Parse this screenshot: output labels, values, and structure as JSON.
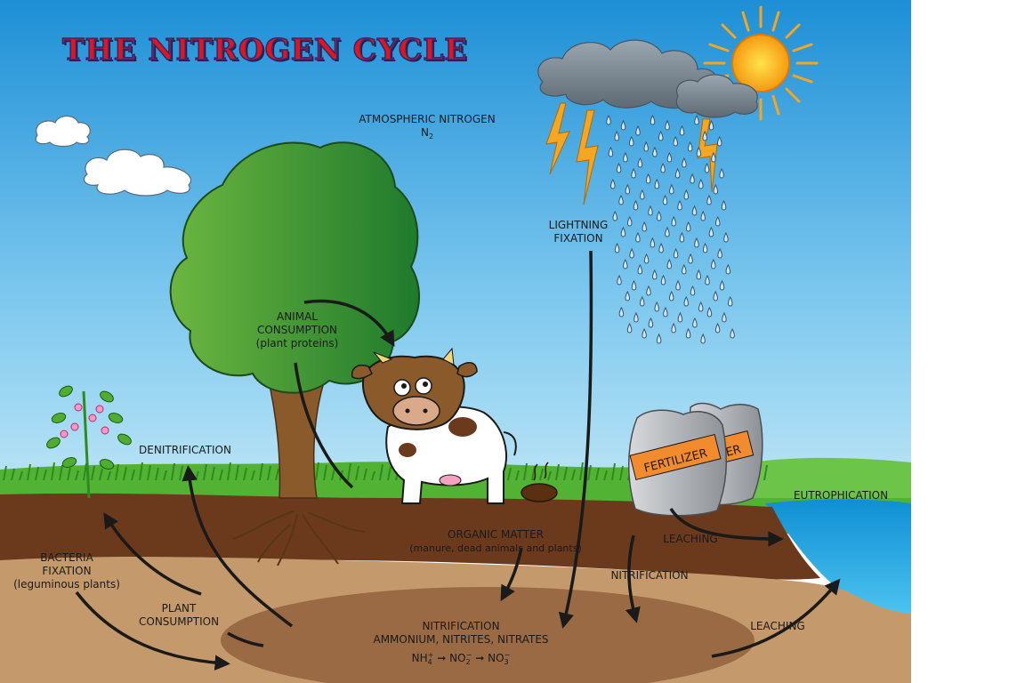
{
  "title": "THE NITROGEN CYCLE",
  "labels": {
    "atmospheric": "ATMOSPHERIC NITROGEN",
    "n2": "N",
    "n2_sub": "2",
    "lightning": "LIGHTNING",
    "lightning2": "FIXATION",
    "animal1": "ANIMAL",
    "animal2": "CONSUMPTION",
    "animal3": "(plant proteins)",
    "denitrification": "DENITRIFICATION",
    "bacteria1": "BACTERIA",
    "bacteria2": "FIXATION",
    "bacteria3": "(leguminous plants)",
    "plant1": "PLANT",
    "plant2": "CONSUMPTION",
    "organic1": "ORGANIC MATTER",
    "organic2": "(manure, dead animals and plants)",
    "leaching_top": "LEACHING",
    "nitrification_right": "NITRIFICATION",
    "eutrophication": "EUTROPHICATION",
    "leaching_bottom": "LEACHING",
    "nitrification_center": "NITRIFICATION",
    "ammonium": "AMMONIUM, NITRITES, NITRATES",
    "formula": {
      "nh": "NH",
      "nh_sub": "4",
      "nh_sup": "+",
      "no2": "NO",
      "no2_sub": "2",
      "no2_sup": "−",
      "no3": "NO",
      "no3_sub": "3",
      "no3_sup": "−"
    },
    "fertilizer": "FERTILIZER",
    "fertilizer_back": "IZER"
  },
  "colors": {
    "sky_top": "#1d8fd6",
    "sky_bottom": "#b8e2f4",
    "grass": "#4fae32",
    "soil_dark": "#6b3a1c",
    "soil_light": "#c49a6c",
    "water": "#1ea4e0",
    "title_red": "#e3141d",
    "sun": "#f7a51a"
  }
}
